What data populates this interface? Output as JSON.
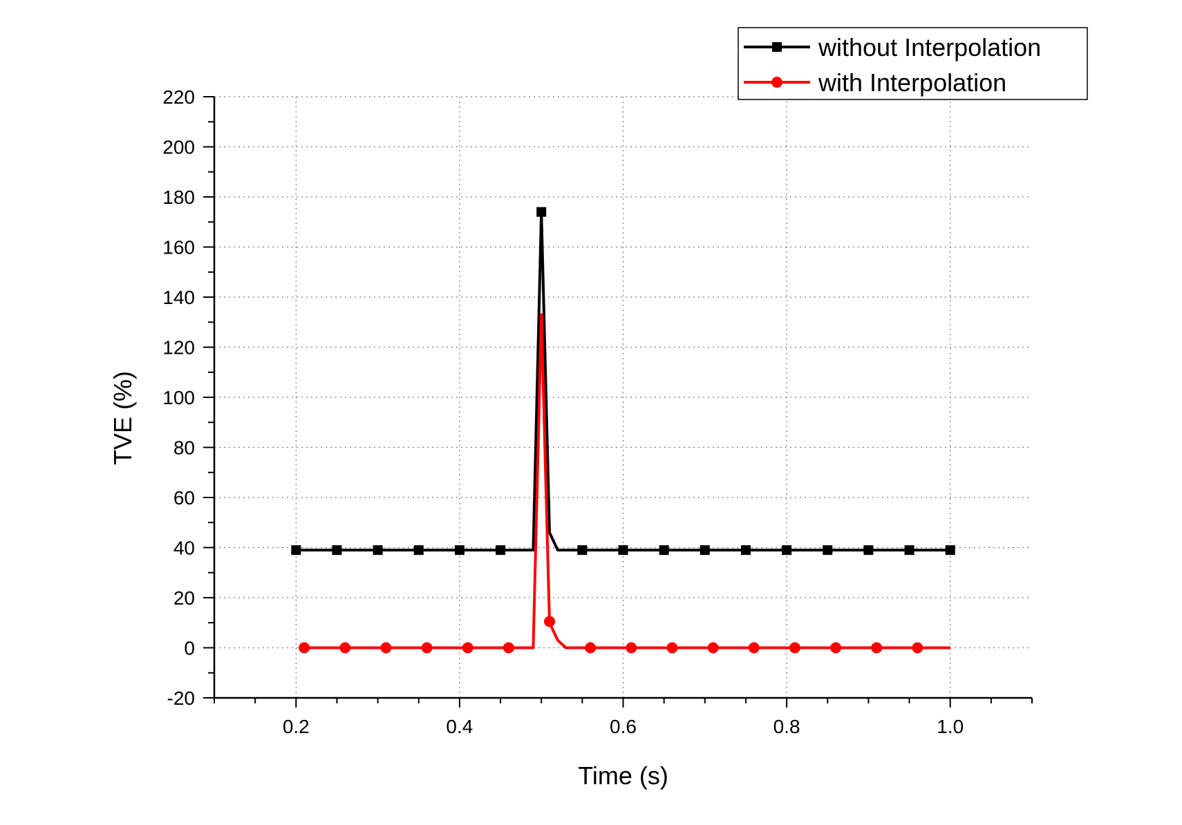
{
  "chart_data": {
    "type": "line",
    "title": "",
    "xlabel": "Time (s)",
    "ylabel": "TVE (%)",
    "xlim": [
      0.1,
      1.1
    ],
    "ylim": [
      -20,
      220
    ],
    "xticks": [
      0.2,
      0.4,
      0.6,
      0.8,
      1.0
    ],
    "xtick_labels": [
      "0.2",
      "0.4",
      "0.6",
      "0.8",
      "1.0"
    ],
    "yticks": [
      -20,
      0,
      20,
      40,
      60,
      80,
      100,
      120,
      140,
      160,
      180,
      200,
      220
    ],
    "ytick_labels": [
      "-20",
      "0",
      "20",
      "40",
      "60",
      "80",
      "100",
      "120",
      "140",
      "160",
      "180",
      "200",
      "220"
    ],
    "grid": true,
    "legend_position": "top-right",
    "series": [
      {
        "name": "without Interpolation",
        "color": "#000000",
        "marker": "square",
        "x": [
          0.2,
          0.25,
          0.3,
          0.35,
          0.4,
          0.45,
          0.49,
          0.5,
          0.51,
          0.52,
          0.55,
          0.6,
          0.65,
          0.7,
          0.75,
          0.8,
          0.85,
          0.9,
          0.95,
          1.0
        ],
        "y": [
          39,
          39,
          39,
          39,
          39,
          39,
          39,
          174,
          46,
          39,
          39,
          39,
          39,
          39,
          39,
          39,
          39,
          39,
          39,
          39
        ],
        "marker_x": [
          0.2,
          0.25,
          0.3,
          0.35,
          0.4,
          0.45,
          0.5,
          0.55,
          0.6,
          0.65,
          0.7,
          0.75,
          0.8,
          0.85,
          0.9,
          0.95,
          1.0
        ],
        "marker_y": [
          39,
          39,
          39,
          39,
          39,
          39,
          174,
          39,
          39,
          39,
          39,
          39,
          39,
          39,
          39,
          39,
          39
        ]
      },
      {
        "name": "with Interpolation",
        "color": "#ff0000",
        "marker": "circle",
        "x": [
          0.21,
          0.26,
          0.31,
          0.36,
          0.41,
          0.46,
          0.49,
          0.5,
          0.51,
          0.52,
          0.53,
          0.56,
          0.61,
          0.66,
          0.71,
          0.76,
          0.81,
          0.86,
          0.91,
          0.96,
          1.0
        ],
        "y": [
          0,
          0,
          0,
          0,
          0,
          0,
          0,
          133,
          10,
          3,
          0,
          0,
          0,
          0,
          0,
          0,
          0,
          0,
          0,
          0,
          0
        ],
        "marker_x": [
          0.21,
          0.26,
          0.31,
          0.36,
          0.41,
          0.46,
          0.51,
          0.56,
          0.61,
          0.66,
          0.71,
          0.76,
          0.81,
          0.86,
          0.91,
          0.96
        ],
        "marker_y": [
          0,
          0,
          0,
          0,
          0,
          0,
          10.5,
          0,
          0,
          0,
          0,
          0,
          0,
          0,
          0,
          0
        ]
      }
    ]
  }
}
